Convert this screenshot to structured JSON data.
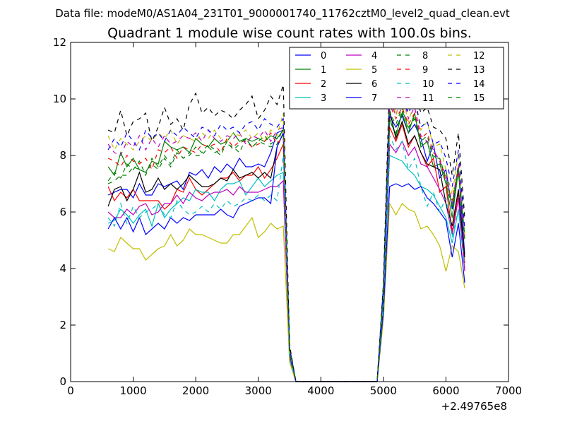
{
  "chart_data": {
    "type": "line",
    "suptitle": "Data file: modeM0/AS1A04_231T01_9000001740_11762cztM0_level2_quad_clean.evt",
    "title": "Quadrant 1 module wise count rates with 100.0s bins.",
    "xlabel": "",
    "ylabel": "",
    "x_offset_label": "+2.49765e8",
    "xlim": [
      0,
      7000
    ],
    "ylim": [
      0,
      12
    ],
    "xticks": [
      "0",
      "1000",
      "2000",
      "3000",
      "4000",
      "5000",
      "6000",
      "7000"
    ],
    "yticks": [
      "0",
      "2",
      "4",
      "6",
      "8",
      "10",
      "12"
    ],
    "legend_position": "top-right",
    "x": [
      600,
      700,
      800,
      900,
      1000,
      1100,
      1200,
      1300,
      1400,
      1500,
      1600,
      1700,
      1800,
      1900,
      2000,
      2100,
      2200,
      2300,
      2400,
      2500,
      2600,
      2700,
      2800,
      2900,
      3000,
      3100,
      3200,
      3300,
      3400,
      3500,
      3600,
      3700,
      3800,
      3900,
      4000,
      4100,
      4200,
      4300,
      4400,
      4500,
      4600,
      4700,
      4800,
      4900,
      5000,
      5100,
      5200,
      5300,
      5400,
      5500,
      5600,
      5700,
      5800,
      5900,
      6000,
      6100,
      6200,
      6300
    ],
    "series": [
      {
        "name": "0",
        "color": "#0000ff",
        "dash": "solid",
        "values": [
          6.6,
          6.7,
          6.8,
          6.8,
          6.5,
          7.0,
          6.6,
          6.6,
          7.0,
          6.9,
          7.0,
          7.1,
          6.8,
          7.4,
          7.3,
          7.5,
          7.2,
          7.6,
          7.4,
          7.7,
          7.5,
          7.9,
          7.6,
          7.6,
          7.7,
          7.6,
          8.1,
          8.8,
          8.9,
          1.2,
          0.0,
          0.0,
          0.0,
          0.0,
          0.0,
          0.0,
          0.0,
          0.0,
          0.0,
          0.0,
          0.0,
          0.0,
          0.0,
          0.0,
          3.2,
          9.4,
          9.0,
          9.4,
          8.8,
          9.1,
          8.6,
          7.8,
          8.4,
          7.2,
          7.5,
          6.1,
          7.5,
          4.5
        ]
      },
      {
        "name": "1",
        "color": "#008000",
        "dash": "solid",
        "values": [
          7.6,
          7.3,
          8.1,
          7.6,
          7.9,
          7.5,
          7.4,
          7.8,
          7.7,
          8.5,
          8.3,
          8.2,
          8.3,
          8.1,
          8.6,
          8.4,
          8.3,
          8.6,
          8.4,
          8.5,
          8.8,
          8.5,
          8.6,
          8.5,
          8.6,
          8.5,
          8.7,
          8.6,
          8.9,
          1.0,
          0.0,
          0.0,
          0.0,
          0.0,
          0.0,
          0.0,
          0.0,
          0.0,
          0.0,
          0.0,
          0.0,
          0.0,
          0.0,
          0.0,
          3.0,
          9.3,
          8.7,
          9.5,
          8.8,
          9.5,
          8.3,
          8.5,
          7.6,
          7.7,
          7.0,
          5.8,
          7.5,
          5.2
        ]
      },
      {
        "name": "2",
        "color": "#ff0000",
        "dash": "solid",
        "values": [
          6.9,
          6.4,
          6.7,
          6.5,
          6.8,
          6.4,
          6.4,
          6.4,
          6.4,
          6.1,
          6.3,
          6.8,
          6.7,
          7.2,
          6.8,
          6.6,
          6.8,
          7.0,
          7.2,
          7.2,
          7.4,
          7.1,
          7.3,
          7.3,
          7.6,
          7.2,
          7.5,
          7.9,
          8.4,
          1.1,
          0.0,
          0.0,
          0.0,
          0.0,
          0.0,
          0.0,
          0.0,
          0.0,
          0.0,
          0.0,
          0.0,
          0.0,
          0.0,
          0.0,
          3.1,
          9.0,
          8.5,
          9.1,
          8.3,
          8.7,
          8.1,
          7.6,
          7.9,
          6.7,
          6.9,
          5.3,
          6.7,
          4.2
        ]
      },
      {
        "name": "3",
        "color": "#00bfbf",
        "dash": "solid",
        "values": [
          5.6,
          5.7,
          6.1,
          5.9,
          5.6,
          5.9,
          6.1,
          5.5,
          6.3,
          5.8,
          6.1,
          6.3,
          6.5,
          6.4,
          6.8,
          6.7,
          6.7,
          6.4,
          6.8,
          7.0,
          7.0,
          7.1,
          6.6,
          6.9,
          7.2,
          6.9,
          7.1,
          7.3,
          7.4,
          0.8,
          0.0,
          0.0,
          0.0,
          0.0,
          0.0,
          0.0,
          0.0,
          0.0,
          0.0,
          0.0,
          0.0,
          0.0,
          0.0,
          0.0,
          2.8,
          8.0,
          7.9,
          7.8,
          7.5,
          7.3,
          6.9,
          6.8,
          6.6,
          6.2,
          5.8,
          4.9,
          6.1,
          4.0
        ]
      },
      {
        "name": "4",
        "color": "#bf00bf",
        "dash": "solid",
        "values": [
          6.0,
          5.8,
          5.8,
          6.1,
          5.9,
          6.2,
          6.3,
          5.9,
          6.0,
          6.3,
          6.3,
          6.6,
          6.3,
          6.7,
          6.5,
          6.4,
          6.6,
          6.7,
          6.7,
          6.8,
          6.6,
          6.9,
          6.7,
          6.7,
          6.7,
          6.8,
          6.9,
          6.9,
          7.1,
          0.9,
          0.0,
          0.0,
          0.0,
          0.0,
          0.0,
          0.0,
          0.0,
          0.0,
          0.0,
          0.0,
          0.0,
          0.0,
          0.0,
          0.0,
          2.9,
          8.4,
          8.1,
          8.5,
          8.0,
          8.3,
          7.7,
          7.6,
          7.2,
          6.8,
          6.3,
          5.2,
          6.5,
          3.9
        ]
      },
      {
        "name": "5",
        "color": "#bfbf00",
        "dash": "solid",
        "values": [
          4.7,
          4.6,
          5.1,
          4.9,
          4.7,
          4.7,
          4.3,
          4.5,
          4.7,
          4.8,
          5.2,
          4.8,
          5.0,
          5.4,
          5.2,
          5.2,
          5.1,
          5.0,
          4.9,
          4.9,
          5.2,
          5.2,
          5.5,
          5.8,
          5.1,
          5.3,
          5.6,
          5.4,
          5.5,
          0.7,
          0.0,
          0.0,
          0.0,
          0.0,
          0.0,
          0.0,
          0.0,
          0.0,
          0.0,
          0.0,
          0.0,
          0.0,
          0.0,
          0.0,
          2.2,
          6.3,
          5.9,
          6.3,
          6.1,
          6.0,
          5.4,
          5.5,
          5.2,
          4.8,
          3.9,
          4.8,
          4.6,
          3.3
        ]
      },
      {
        "name": "6",
        "color": "#000000",
        "dash": "solid",
        "values": [
          6.2,
          6.8,
          6.9,
          6.4,
          6.8,
          7.4,
          6.7,
          6.8,
          7.2,
          6.8,
          7.0,
          6.8,
          7.0,
          7.3,
          7.1,
          6.9,
          6.9,
          7.0,
          7.2,
          7.1,
          7.5,
          7.2,
          7.3,
          7.4,
          7.2,
          7.4,
          7.2,
          8.3,
          8.8,
          1.2,
          0.0,
          0.0,
          0.0,
          0.0,
          0.0,
          0.0,
          0.0,
          0.0,
          0.0,
          0.0,
          0.0,
          0.0,
          0.0,
          0.0,
          3.0,
          9.6,
          8.6,
          9.2,
          8.4,
          8.7,
          8.1,
          7.7,
          7.6,
          7.5,
          6.3,
          5.5,
          6.8,
          4.4
        ]
      },
      {
        "name": "7",
        "color": "#0000ff",
        "dash": "solid",
        "values": [
          5.4,
          5.8,
          5.4,
          5.8,
          5.3,
          5.8,
          5.2,
          5.4,
          5.6,
          5.4,
          5.8,
          5.6,
          5.8,
          5.7,
          5.9,
          5.9,
          5.9,
          5.9,
          6.1,
          5.9,
          5.8,
          6.2,
          6.3,
          6.4,
          6.5,
          6.5,
          6.3,
          8.3,
          8.8,
          1.0,
          0.0,
          0.0,
          0.0,
          0.0,
          0.0,
          0.0,
          0.0,
          0.0,
          0.0,
          0.0,
          0.0,
          0.0,
          0.0,
          0.0,
          2.5,
          6.9,
          7.0,
          6.9,
          7.0,
          6.8,
          6.9,
          6.5,
          6.3,
          6.0,
          5.7,
          4.4,
          5.6,
          3.5
        ]
      },
      {
        "name": "8",
        "color": "#008000",
        "dash": "dashed",
        "values": [
          7.0,
          7.1,
          7.3,
          7.3,
          7.6,
          7.5,
          7.4,
          7.7,
          7.5,
          7.9,
          7.6,
          8.1,
          7.9,
          8.1,
          8.0,
          8.0,
          8.3,
          8.1,
          8.2,
          8.4,
          8.3,
          8.1,
          8.6,
          8.3,
          8.5,
          8.4,
          8.3,
          8.4,
          9.0,
          1.1,
          0.0,
          0.0,
          0.0,
          0.0,
          0.0,
          0.0,
          0.0,
          0.0,
          0.0,
          0.0,
          0.0,
          0.0,
          0.0,
          0.0,
          3.0,
          9.2,
          8.8,
          9.6,
          9.0,
          9.3,
          8.4,
          8.5,
          8.0,
          7.8,
          7.0,
          6.2,
          7.4,
          5.0
        ]
      },
      {
        "name": "9",
        "color": "#ff0000",
        "dash": "dashed",
        "values": [
          7.9,
          7.8,
          7.6,
          8.0,
          7.8,
          7.7,
          7.9,
          7.5,
          8.2,
          8.1,
          8.3,
          7.9,
          8.3,
          8.2,
          8.1,
          8.4,
          8.3,
          8.4,
          8.1,
          8.6,
          8.3,
          8.5,
          8.5,
          8.3,
          8.4,
          8.5,
          8.8,
          8.4,
          8.7,
          1.1,
          0.0,
          0.0,
          0.0,
          0.0,
          0.0,
          0.0,
          0.0,
          0.0,
          0.0,
          0.0,
          0.0,
          0.0,
          0.0,
          0.0,
          3.2,
          9.8,
          9.3,
          9.7,
          9.1,
          9.5,
          8.6,
          8.8,
          8.1,
          7.9,
          7.1,
          6.4,
          7.6,
          5.1
        ]
      },
      {
        "name": "10",
        "color": "#00bfbf",
        "dash": "dashed",
        "values": [
          5.8,
          5.5,
          6.3,
          5.6,
          6.2,
          5.8,
          6.0,
          6.1,
          6.3,
          5.9,
          5.8,
          6.4,
          6.1,
          5.9,
          6.0,
          6.2,
          6.0,
          6.3,
          6.1,
          6.4,
          6.2,
          6.3,
          6.5,
          6.4,
          6.6,
          6.4,
          6.6,
          6.4,
          8.0,
          0.8,
          0.0,
          0.0,
          0.0,
          0.0,
          0.0,
          0.0,
          0.0,
          0.0,
          0.0,
          0.0,
          0.0,
          0.0,
          0.0,
          0.0,
          2.8,
          8.7,
          8.2,
          8.5,
          7.5,
          7.9,
          6.9,
          6.2,
          6.7,
          6.0,
          6.5,
          5.1,
          6.1,
          4.1
        ]
      },
      {
        "name": "11",
        "color": "#bf00bf",
        "dash": "dashed",
        "values": [
          8.4,
          8.1,
          8.0,
          8.5,
          8.3,
          8.7,
          8.2,
          8.6,
          8.3,
          8.7,
          8.4,
          8.5,
          8.7,
          8.6,
          8.8,
          8.5,
          8.9,
          8.6,
          8.5,
          8.7,
          8.6,
          8.8,
          8.4,
          8.7,
          8.6,
          8.9,
          8.5,
          8.9,
          9.0,
          1.2,
          0.0,
          0.0,
          0.0,
          0.0,
          0.0,
          0.0,
          0.0,
          0.0,
          0.0,
          0.0,
          0.0,
          0.0,
          0.0,
          0.0,
          3.3,
          10.0,
          9.4,
          10.3,
          9.3,
          9.7,
          8.7,
          8.5,
          8.2,
          7.8,
          7.3,
          6.3,
          7.7,
          5.0
        ]
      },
      {
        "name": "12",
        "color": "#bfbf00",
        "dash": "dashed",
        "values": [
          8.7,
          8.2,
          8.6,
          8.4,
          8.2,
          8.5,
          8.7,
          8.5,
          8.8,
          8.6,
          8.9,
          8.4,
          8.7,
          8.6,
          8.5,
          8.8,
          8.6,
          8.9,
          8.6,
          8.5,
          8.8,
          8.7,
          8.9,
          8.6,
          8.8,
          8.5,
          8.9,
          8.7,
          9.5,
          1.1,
          0.0,
          0.0,
          0.0,
          0.0,
          0.0,
          0.0,
          0.0,
          0.0,
          0.0,
          0.0,
          0.0,
          0.0,
          0.0,
          0.0,
          3.3,
          10.6,
          9.4,
          10.1,
          9.2,
          9.9,
          8.9,
          9.2,
          8.3,
          8.4,
          7.5,
          6.6,
          8.1,
          5.2
        ]
      },
      {
        "name": "13",
        "color": "#000000",
        "dash": "dashed",
        "values": [
          8.9,
          8.8,
          9.6,
          8.7,
          9.2,
          9.3,
          9.5,
          8.5,
          9.0,
          9.7,
          9.1,
          9.3,
          8.9,
          9.8,
          10.2,
          9.5,
          9.7,
          9.4,
          9.6,
          9.5,
          9.3,
          9.6,
          9.8,
          10.1,
          9.3,
          9.6,
          10.1,
          9.8,
          10.5,
          1.3,
          0.0,
          0.0,
          0.0,
          0.0,
          0.0,
          0.0,
          0.0,
          0.0,
          0.0,
          0.0,
          0.0,
          0.0,
          0.0,
          0.0,
          3.5,
          10.8,
          10.3,
          10.5,
          9.9,
          10.3,
          9.5,
          9.7,
          9.0,
          8.9,
          8.6,
          7.3,
          8.8,
          5.8
        ]
      },
      {
        "name": "14",
        "color": "#0000ff",
        "dash": "dashed",
        "values": [
          8.2,
          8.6,
          8.3,
          8.8,
          8.5,
          8.2,
          8.9,
          8.6,
          8.8,
          8.5,
          8.9,
          8.7,
          9.0,
          8.8,
          8.6,
          9.0,
          8.9,
          8.7,
          9.1,
          8.9,
          9.0,
          8.8,
          9.1,
          9.2,
          8.9,
          9.3,
          9.1,
          9.0,
          9.3,
          1.2,
          0.0,
          0.0,
          0.0,
          0.0,
          0.0,
          0.0,
          0.0,
          0.0,
          0.0,
          0.0,
          0.0,
          0.0,
          0.0,
          0.0,
          3.4,
          10.3,
          9.7,
          10.2,
          9.5,
          10.0,
          9.0,
          9.2,
          8.4,
          8.5,
          7.9,
          6.9,
          8.2,
          5.4
        ]
      },
      {
        "name": "15",
        "color": "#008000",
        "dash": "dashed",
        "values": [
          7.1,
          7.4,
          7.2,
          7.7,
          7.5,
          7.8,
          7.3,
          7.9,
          7.6,
          8.0,
          7.7,
          8.2,
          7.9,
          8.0,
          8.3,
          8.1,
          8.4,
          8.2,
          8.0,
          8.5,
          8.2,
          8.4,
          8.6,
          8.3,
          8.5,
          8.7,
          8.4,
          8.6,
          8.9,
          1.1,
          0.0,
          0.0,
          0.0,
          0.0,
          0.0,
          0.0,
          0.0,
          0.0,
          0.0,
          0.0,
          0.0,
          0.0,
          0.0,
          0.0,
          3.1,
          9.5,
          9.1,
          9.7,
          8.9,
          9.4,
          8.5,
          8.7,
          7.9,
          7.9,
          7.2,
          6.2,
          7.6,
          5.1
        ]
      }
    ]
  }
}
